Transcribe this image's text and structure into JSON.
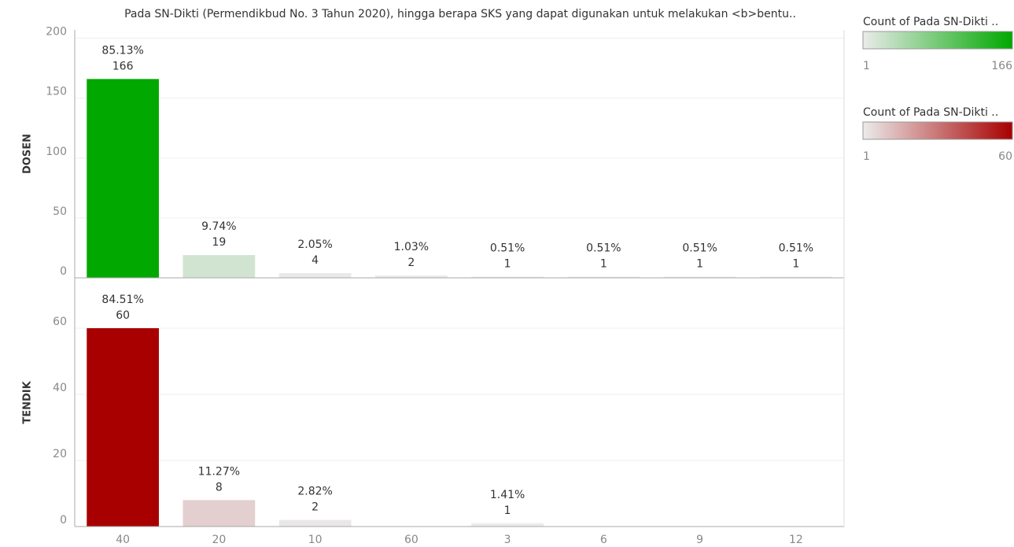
{
  "title": "Pada SN-Dikti (Permendikbud No. 3 Tahun 2020), hingga berapa SKS yang dapat digunakan untuk melakukan <b>bentu..",
  "categories": [
    "40",
    "20",
    "10",
    "60",
    "3",
    "6",
    "9",
    "12"
  ],
  "chart_data": [
    {
      "type": "bar",
      "row_label": "DOSEN",
      "values": [
        166,
        19,
        4,
        2,
        1,
        1,
        1,
        1
      ],
      "percent_labels": [
        "85.13%",
        "9.74%",
        "2.05%",
        "1.03%",
        "0.51%",
        "0.51%",
        "0.51%",
        "0.51%"
      ],
      "ylim": [
        0,
        207
      ],
      "yticks": [
        0,
        50,
        100,
        150,
        200
      ],
      "grid": true,
      "color_range": [
        "#ebebeb",
        "#00a800"
      ],
      "legend": {
        "title": "Count of Pada SN-Dikti ..",
        "min": 1,
        "max": 166
      }
    },
    {
      "type": "bar",
      "row_label": "TENDIK",
      "values": [
        60,
        8,
        2,
        null,
        1,
        null,
        null,
        null
      ],
      "percent_labels": [
        "84.51%",
        "11.27%",
        "2.82%",
        null,
        "1.41%",
        null,
        null,
        null
      ],
      "ylim": [
        0,
        75
      ],
      "yticks": [
        0,
        20,
        40,
        60
      ],
      "grid": true,
      "color_range": [
        "#ebebeb",
        "#a80000"
      ],
      "legend": {
        "title": "Count of Pada SN-Dikti ..",
        "min": 1,
        "max": 60
      }
    }
  ]
}
